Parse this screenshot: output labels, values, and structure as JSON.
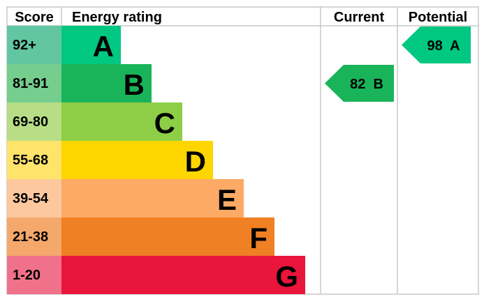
{
  "chart_data": {
    "type": "bar",
    "headers": {
      "score": "Score",
      "rating": "Energy rating",
      "current": "Current",
      "potential": "Potential"
    },
    "bands": [
      {
        "letter": "A",
        "range": "92+",
        "color": "#00c781",
        "score_color": "#62c6a2"
      },
      {
        "letter": "B",
        "range": "81-91",
        "color": "#19b459",
        "score_color": "#75cd8e"
      },
      {
        "letter": "C",
        "range": "69-80",
        "color": "#8dce46",
        "score_color": "#b7dd86"
      },
      {
        "letter": "D",
        "range": "55-68",
        "color": "#ffd500",
        "score_color": "#ffe36b"
      },
      {
        "letter": "E",
        "range": "39-54",
        "color": "#fcaa65",
        "score_color": "#fdc89d"
      },
      {
        "letter": "F",
        "range": "21-38",
        "color": "#ef8023",
        "score_color": "#f4a86b"
      },
      {
        "letter": "G",
        "range": "1-20",
        "color": "#e9153b",
        "score_color": "#f0728a"
      }
    ],
    "current": {
      "value": 82,
      "letter": "B",
      "label": "82  B"
    },
    "potential": {
      "value": 98,
      "letter": "A",
      "label": "98  A"
    }
  }
}
